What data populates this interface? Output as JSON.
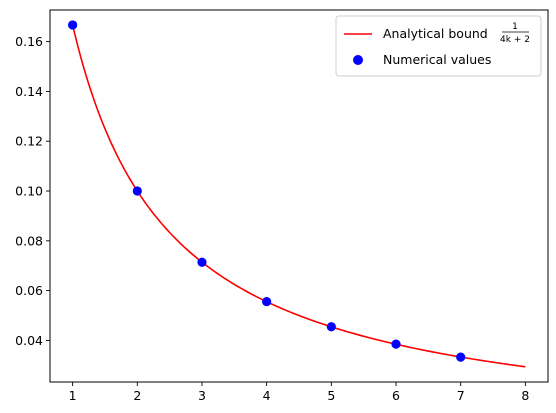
{
  "chart_data": {
    "type": "line",
    "title": "",
    "xlabel": "",
    "ylabel": "",
    "xlim": [
      0.65,
      8.35
    ],
    "ylim": [
      0.0233,
      0.1727
    ],
    "grid": false,
    "legend_position": "top-right",
    "x_ticks": [
      1,
      2,
      3,
      4,
      5,
      6,
      7,
      8
    ],
    "x_tick_labels": [
      "1",
      "2",
      "3",
      "4",
      "5",
      "6",
      "7",
      "8"
    ],
    "y_ticks": [
      0.04,
      0.06,
      0.08,
      0.1,
      0.12,
      0.14,
      0.16
    ],
    "y_tick_labels": [
      "0.04",
      "0.06",
      "0.08",
      "0.10",
      "0.12",
      "0.14",
      "0.16"
    ],
    "series": [
      {
        "name": "Analytical bound",
        "name_formula_numerator": "1",
        "name_formula_denominator": "4k + 2",
        "kind": "line",
        "color": "#ff0000",
        "x_range": [
          1,
          8
        ],
        "formula": "1/(4k+2)"
      },
      {
        "name": "Numerical values",
        "kind": "scatter",
        "color": "#0000ff",
        "x": [
          1,
          2,
          3,
          4,
          5,
          6,
          7
        ],
        "y": [
          0.1667,
          0.1,
          0.0714,
          0.0556,
          0.0455,
          0.0385,
          0.0333
        ]
      }
    ]
  }
}
